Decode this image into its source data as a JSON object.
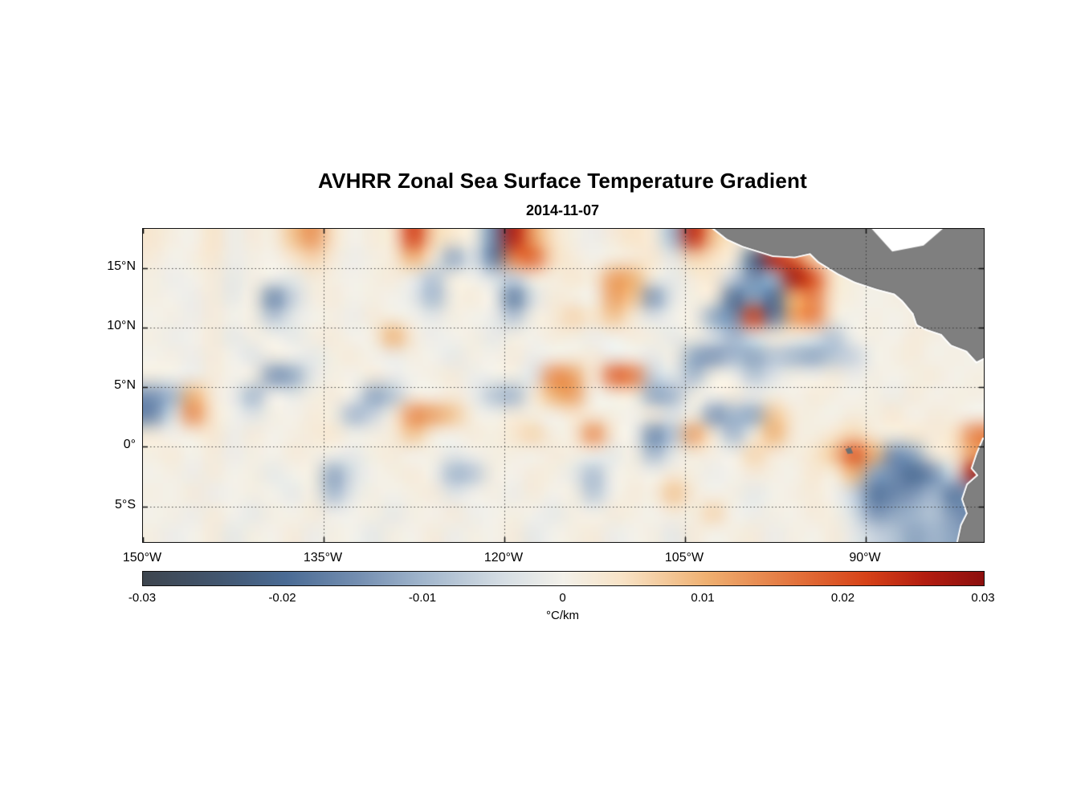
{
  "figure": {
    "background": "#ffffff",
    "axis_color": "#111111",
    "grid_style": "dotted"
  },
  "chart_data": {
    "type": "heatmap",
    "title": "AVHRR Zonal Sea Surface Temperature Gradient",
    "subtitle": "2014-11-07",
    "colorbar_label": "°C/km",
    "lon_range": [
      -150,
      -80.2
    ],
    "lat_range": [
      -8,
      18.3
    ],
    "xticks": [
      {
        "lon": -150,
        "label": "150°W"
      },
      {
        "lon": -135,
        "label": "135°W"
      },
      {
        "lon": -120,
        "label": "120°W"
      },
      {
        "lon": -105,
        "label": "105°W"
      },
      {
        "lon": -90,
        "label": "90°W"
      }
    ],
    "yticks": [
      {
        "lat": 15,
        "label": "15°N"
      },
      {
        "lat": 10,
        "label": "10°N"
      },
      {
        "lat": 5,
        "label": "5°N"
      },
      {
        "lat": 0,
        "label": "0°"
      },
      {
        "lat": -5,
        "label": "5°S"
      }
    ],
    "grid_on": true,
    "colorbar": {
      "min": -0.03,
      "max": 0.03,
      "ticks": [
        -0.03,
        -0.02,
        -0.01,
        0,
        0.01,
        0.02,
        0.03
      ],
      "tick_labels": [
        "-0.03",
        "-0.02",
        "-0.01",
        "0",
        "0.01",
        "0.02",
        "0.03"
      ]
    },
    "colormap_stops": [
      [
        0.0,
        "#3d454e"
      ],
      [
        0.09,
        "#42566f"
      ],
      [
        0.17,
        "#4a6b94"
      ],
      [
        0.26,
        "#7690b2"
      ],
      [
        0.33,
        "#9fb4cb"
      ],
      [
        0.43,
        "#d6dee4"
      ],
      [
        0.5,
        "#f3f1ea"
      ],
      [
        0.57,
        "#f8e3c6"
      ],
      [
        0.67,
        "#efb071"
      ],
      [
        0.78,
        "#e2703a"
      ],
      [
        0.86,
        "#d64218"
      ],
      [
        0.93,
        "#b31d10"
      ],
      [
        1.0,
        "#8c0f0e"
      ]
    ],
    "value_scale": 0.001,
    "grid": {
      "ncols": 42,
      "nrows": 16,
      "values": [
        [
          3,
          1,
          0,
          4,
          -1,
          2,
          1,
          8,
          13,
          4,
          0,
          2,
          3,
          22,
          6,
          3,
          1,
          -16,
          26,
          12,
          4,
          1,
          -1,
          2,
          4,
          2,
          -10,
          24,
          8,
          3,
          2,
          1,
          0,
          2,
          1,
          2,
          1,
          2,
          0,
          1,
          2,
          1
        ],
        [
          2,
          0,
          1,
          3,
          -1,
          1,
          0,
          3,
          6,
          2,
          -1,
          1,
          2,
          10,
          2,
          -12,
          -3,
          -18,
          15,
          18,
          5,
          2,
          0,
          1,
          2,
          3,
          -2,
          6,
          4,
          2,
          -22,
          26,
          18,
          6,
          1,
          2,
          0,
          1,
          1,
          2,
          1,
          0
        ],
        [
          1,
          -1,
          0,
          2,
          -2,
          1,
          0,
          -2,
          2,
          1,
          0,
          1,
          2,
          -1,
          -8,
          1,
          0,
          -4,
          -6,
          2,
          1,
          3,
          2,
          12,
          10,
          1,
          -2,
          2,
          3,
          -6,
          -15,
          -10,
          28,
          20,
          4,
          1,
          1,
          0,
          2,
          1,
          0,
          1
        ],
        [
          1,
          0,
          -1,
          2,
          -2,
          1,
          -16,
          -6,
          1,
          2,
          0,
          1,
          0,
          -2,
          -10,
          1,
          2,
          0,
          -18,
          -4,
          2,
          1,
          0,
          12,
          8,
          -14,
          -2,
          1,
          2,
          -20,
          -12,
          -20,
          10,
          15,
          3,
          1,
          0,
          1,
          1,
          0,
          2,
          1
        ],
        [
          0,
          1,
          -1,
          2,
          0,
          1,
          -8,
          -2,
          0,
          1,
          -1,
          2,
          1,
          0,
          -2,
          1,
          0,
          -1,
          -8,
          1,
          2,
          6,
          3,
          8,
          2,
          -3,
          0,
          1,
          -12,
          -15,
          22,
          -18,
          12,
          15,
          2,
          0,
          1,
          0,
          1,
          2,
          0,
          1
        ],
        [
          1,
          -1,
          0,
          2,
          -2,
          1,
          0,
          -2,
          1,
          2,
          0,
          1,
          10,
          2,
          -1,
          0,
          1,
          -2,
          1,
          0,
          2,
          1,
          -1,
          0,
          2,
          1,
          -2,
          1,
          -3,
          -10,
          -4,
          2,
          1,
          -2,
          -8,
          0,
          1,
          0,
          2,
          1,
          0,
          1
        ],
        [
          0,
          1,
          -1,
          2,
          0,
          -3,
          1,
          0,
          -2,
          1,
          2,
          0,
          -1,
          1,
          0,
          -2,
          1,
          0,
          2,
          -1,
          0,
          1,
          2,
          -1,
          0,
          -2,
          1,
          -12,
          -14,
          -10,
          -12,
          -8,
          -10,
          -12,
          -8,
          -6,
          0,
          1,
          2,
          0,
          1,
          0
        ],
        [
          1,
          0,
          -1,
          2,
          0,
          1,
          -14,
          -12,
          -2,
          1,
          0,
          2,
          -1,
          0,
          1,
          2,
          -1,
          0,
          1,
          -3,
          14,
          12,
          2,
          18,
          16,
          -6,
          -2,
          -10,
          1,
          0,
          -8,
          -3,
          1,
          0,
          2,
          -1,
          1,
          0,
          1,
          2,
          0,
          1
        ],
        [
          -14,
          -10,
          10,
          2,
          -1,
          -10,
          0,
          -2,
          1,
          2,
          0,
          -12,
          -8,
          1,
          0,
          2,
          -1,
          -8,
          -10,
          2,
          10,
          12,
          0,
          1,
          2,
          -12,
          -10,
          1,
          0,
          2,
          -1,
          1,
          0,
          2,
          1,
          0,
          1,
          -1,
          2,
          0,
          1,
          1
        ],
        [
          -16,
          -4,
          14,
          3,
          0,
          -3,
          1,
          0,
          2,
          1,
          -10,
          -6,
          2,
          14,
          12,
          8,
          1,
          0,
          2,
          1,
          0,
          3,
          2,
          1,
          0,
          2,
          -3,
          1,
          -14,
          -10,
          -12,
          8,
          2,
          1,
          0,
          2,
          1,
          3,
          0,
          2,
          1,
          0
        ],
        [
          2,
          0,
          1,
          3,
          -1,
          2,
          0,
          1,
          2,
          3,
          0,
          1,
          2,
          8,
          1,
          0,
          2,
          1,
          3,
          6,
          1,
          2,
          14,
          2,
          0,
          -16,
          -8,
          12,
          2,
          -10,
          1,
          10,
          2,
          1,
          3,
          6,
          2,
          1,
          3,
          2,
          4,
          15
        ],
        [
          1,
          2,
          0,
          2,
          -1,
          1,
          0,
          2,
          1,
          0,
          -2,
          1,
          2,
          0,
          1,
          -2,
          0,
          1,
          1,
          0,
          2,
          1,
          0,
          -2,
          1,
          -10,
          -2,
          2,
          1,
          0,
          6,
          2,
          1,
          3,
          8,
          20,
          10,
          -15,
          -12,
          2,
          3,
          12
        ],
        [
          0,
          1,
          -1,
          2,
          0,
          1,
          -2,
          0,
          1,
          -12,
          -4,
          0,
          1,
          2,
          0,
          -10,
          -8,
          1,
          0,
          2,
          1,
          -2,
          -9,
          0,
          1,
          0,
          2,
          1,
          -1,
          0,
          2,
          1,
          0,
          3,
          1,
          10,
          -12,
          -15,
          -20,
          -15,
          -4,
          28
        ],
        [
          1,
          0,
          2,
          -1,
          0,
          1,
          0,
          -2,
          1,
          -10,
          -2,
          1,
          0,
          1,
          2,
          -3,
          0,
          1,
          -1,
          2,
          0,
          1,
          -8,
          0,
          2,
          1,
          8,
          2,
          0,
          1,
          -2,
          0,
          1,
          2,
          0,
          -6,
          -18,
          -16,
          -14,
          -10,
          -18,
          -12
        ],
        [
          0,
          1,
          -1,
          2,
          0,
          -2,
          1,
          0,
          2,
          -1,
          0,
          1,
          -2,
          1,
          0,
          2,
          -1,
          0,
          1,
          0,
          -2,
          1,
          0,
          2,
          1,
          0,
          2,
          1,
          6,
          0,
          -1,
          1,
          0,
          2,
          1,
          -4,
          -14,
          -12,
          -10,
          -8,
          -14,
          -16
        ],
        [
          1,
          -1,
          0,
          2,
          -2,
          1,
          0,
          2,
          -1,
          1,
          0,
          -2,
          1,
          0,
          2,
          -1,
          1,
          0,
          2,
          -2,
          0,
          1,
          2,
          -1,
          0,
          1,
          -2,
          2,
          0,
          1,
          2,
          -1,
          1,
          0,
          2,
          -2,
          -6,
          -8,
          -12,
          -10,
          -12,
          -14
        ]
      ]
    },
    "land_color": "#7f7f7f",
    "land_polygons": {
      "central_america": [
        [
          -102.5,
          18.3
        ],
        [
          -101.5,
          17.5
        ],
        [
          -100.2,
          16.9
        ],
        [
          -97.7,
          16.1
        ],
        [
          -95.9,
          16.0
        ],
        [
          -94.6,
          16.3
        ],
        [
          -93.9,
          15.6
        ],
        [
          -92.3,
          14.6
        ],
        [
          -90.9,
          13.9
        ],
        [
          -89.1,
          13.3
        ],
        [
          -87.6,
          12.9
        ],
        [
          -86.9,
          12.3
        ],
        [
          -86.0,
          11.2
        ],
        [
          -85.7,
          10.3
        ],
        [
          -84.9,
          9.9
        ],
        [
          -83.7,
          9.5
        ],
        [
          -82.9,
          8.6
        ],
        [
          -81.6,
          8.1
        ],
        [
          -80.8,
          7.2
        ],
        [
          -79.8,
          7.7
        ],
        [
          -78.0,
          7.8
        ],
        [
          -78.0,
          18.3
        ]
      ],
      "south_america": [
        [
          -80.2,
          0.6
        ],
        [
          -80.7,
          -0.6
        ],
        [
          -81.1,
          -1.8
        ],
        [
          -80.6,
          -2.4
        ],
        [
          -81.5,
          -3.2
        ],
        [
          -81.9,
          -4.4
        ],
        [
          -81.5,
          -5.6
        ],
        [
          -82.0,
          -6.6
        ],
        [
          -82.3,
          -8.0
        ],
        [
          -77.0,
          -8.0
        ],
        [
          -77.0,
          0.6
        ]
      ],
      "galapagos": [
        [
          -91.7,
          -0.2
        ],
        [
          -91.25,
          -0.05
        ],
        [
          -91.05,
          -0.55
        ],
        [
          -91.5,
          -0.6
        ]
      ]
    },
    "ocean_gaps": {
      "caribbean_notch": [
        [
          -89.5,
          18.3
        ],
        [
          -87.8,
          16.4
        ],
        [
          -85.2,
          16.9
        ],
        [
          -83.6,
          18.3
        ]
      ]
    }
  }
}
